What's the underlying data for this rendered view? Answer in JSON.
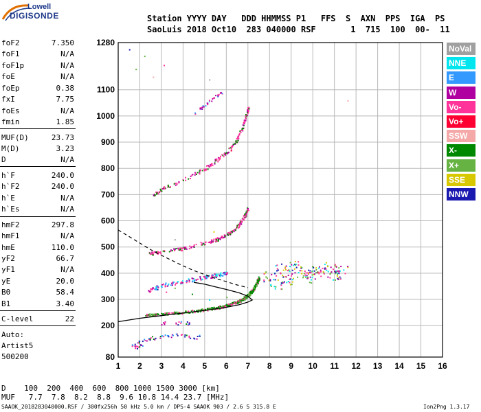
{
  "logo": {
    "line1": "Lowell",
    "line2": "DIGISONDE"
  },
  "header": {
    "line1": "Station YYYY DAY   DDD HHMMSS P1   FFS  S  AXN  PPS  IGA  PS",
    "line2": "SaoLuis 2018 Oct10  283 040000 RSF       1  715  100  00-  11"
  },
  "params": [
    {
      "k": "foF2",
      "v": "7.350"
    },
    {
      "k": "foF1",
      "v": "N/A"
    },
    {
      "k": "foF1p",
      "v": "N/A"
    },
    {
      "k": "foE",
      "v": "N/A"
    },
    {
      "k": "foEp",
      "v": "0.38"
    },
    {
      "k": "fxI",
      "v": "7.75"
    },
    {
      "k": "foEs",
      "v": "N/A"
    },
    {
      "k": "fmin",
      "v": "1.85"
    },
    {
      "k": "MUF(D)",
      "v": "23.73"
    },
    {
      "k": "M(D)",
      "v": "3.23"
    },
    {
      "k": "D",
      "v": "N/A"
    },
    {
      "k": "h`F",
      "v": "240.0"
    },
    {
      "k": "h`F2",
      "v": "240.0"
    },
    {
      "k": "h`E",
      "v": "N/A"
    },
    {
      "k": "h`Es",
      "v": "N/A"
    },
    {
      "k": "hmF2",
      "v": "297.8"
    },
    {
      "k": "hmF1",
      "v": "N/A"
    },
    {
      "k": "hmE",
      "v": "110.0"
    },
    {
      "k": "yF2",
      "v": "66.7"
    },
    {
      "k": "yF1",
      "v": "N/A"
    },
    {
      "k": "yE",
      "v": "20.0"
    },
    {
      "k": "B0",
      "v": "58.4"
    },
    {
      "k": "B1",
      "v": "3.40"
    },
    {
      "k": "C-level",
      "v": "22"
    }
  ],
  "autoscale": {
    "line1": "Auto:",
    "line2": "Artist5",
    "line3": "500200"
  },
  "legend": [
    {
      "label": "NoVal",
      "color": "#a0a0a0"
    },
    {
      "label": "NNE",
      "color": "#00e5ee"
    },
    {
      "label": "E",
      "color": "#3399ff"
    },
    {
      "label": "W",
      "color": "#b000a0"
    },
    {
      "label": "Vo-",
      "color": "#ff3399"
    },
    {
      "label": "Vo+",
      "color": "#ff0033"
    },
    {
      "label": "SSW",
      "color": "#f4a8a8"
    },
    {
      "label": "X-",
      "color": "#008800"
    },
    {
      "label": "X+",
      "color": "#66b344"
    },
    {
      "label": "SSE",
      "color": "#d8c800"
    },
    {
      "label": "NNW",
      "color": "#1a1ab0"
    }
  ],
  "muf_table": {
    "row1": "D    100  200  400  600  800 1000 1500 3000 [km]",
    "row2": "MUF   7.7  7.8  8.2  8.8  9.6 10.8 14.4 23.7 [MHz]"
  },
  "footer": {
    "left": "SAAOK_2018283040000.RSF / 300fx256h 50 kHz 5.0 km / DPS-4 SAAOK 903 / 2.6 S 315.8 E",
    "right": "Ion2Png 1.3.17"
  },
  "chart_data": {
    "type": "scatter",
    "xlim": [
      1,
      16
    ],
    "ylim": [
      80,
      1280
    ],
    "x_ticks": [
      1,
      2,
      3,
      4,
      5,
      6,
      7,
      8,
      9,
      10,
      11,
      12,
      13,
      14,
      15,
      16
    ],
    "y_ticks": [
      80,
      200,
      300,
      400,
      500,
      600,
      700,
      800,
      900,
      1000,
      1100,
      1280
    ],
    "grid": true,
    "profile_curve": [
      [
        1,
        215
      ],
      [
        2,
        228
      ],
      [
        3,
        238
      ],
      [
        4,
        248
      ],
      [
        5,
        258
      ],
      [
        6,
        270
      ],
      [
        6.6,
        280
      ],
      [
        7.0,
        290
      ],
      [
        7.2,
        298
      ],
      [
        7.0,
        312
      ],
      [
        6.6,
        325
      ],
      [
        6.0,
        338
      ],
      [
        5.5,
        348
      ],
      [
        5.0,
        358
      ],
      [
        4.5,
        365
      ]
    ],
    "dashed_curve": [
      [
        1,
        565
      ],
      [
        1.5,
        540
      ],
      [
        2,
        515
      ],
      [
        2.5,
        490
      ],
      [
        3,
        468
      ],
      [
        3.5,
        448
      ],
      [
        4,
        428
      ],
      [
        4.5,
        410
      ],
      [
        5,
        395
      ],
      [
        5.5,
        380
      ],
      [
        6,
        368
      ],
      [
        6.5,
        355
      ],
      [
        7,
        345
      ]
    ],
    "trace_x": [
      [
        2.2,
        240
      ],
      [
        3,
        246
      ],
      [
        4,
        252
      ],
      [
        5,
        262
      ],
      [
        5.6,
        270
      ],
      [
        6.1,
        280
      ],
      [
        6.5,
        292
      ],
      [
        6.8,
        305
      ],
      [
        7.0,
        318
      ],
      [
        7.2,
        335
      ],
      [
        7.35,
        355
      ],
      [
        7.5,
        385
      ]
    ],
    "trace_o": [
      [
        2.4,
        335
      ],
      [
        3,
        355
      ],
      [
        4,
        372
      ],
      [
        5,
        385
      ],
      [
        5.6,
        395
      ],
      [
        6.0,
        402
      ]
    ],
    "trace_2hop": [
      [
        2.4,
        475
      ],
      [
        3,
        482
      ],
      [
        4,
        495
      ],
      [
        5,
        515
      ],
      [
        5.6,
        532
      ],
      [
        6.1,
        552
      ],
      [
        6.5,
        580
      ],
      [
        6.8,
        615
      ],
      [
        7.0,
        650
      ]
    ],
    "trace_3hop": [
      [
        2.6,
        700
      ],
      [
        3,
        722
      ],
      [
        4,
        758
      ],
      [
        5,
        800
      ],
      [
        5.5,
        830
      ],
      [
        6.0,
        860
      ],
      [
        6.4,
        900
      ],
      [
        6.7,
        950
      ],
      [
        6.9,
        1000
      ],
      [
        7.0,
        1030
      ]
    ],
    "trace_4hop": [
      [
        4.5,
        1010
      ],
      [
        5,
        1045
      ],
      [
        5.5,
        1075
      ],
      [
        5.8,
        1095
      ]
    ],
    "low_points": [
      [
        1.7,
        130
      ],
      [
        2.0,
        140
      ],
      [
        2.3,
        150
      ],
      [
        2.6,
        155
      ],
      [
        3.0,
        160
      ],
      [
        3.4,
        162
      ],
      [
        3.8,
        165
      ],
      [
        4.2,
        160
      ],
      [
        4.6,
        158
      ],
      [
        1.8,
        118
      ],
      [
        2.1,
        128
      ],
      [
        3.1,
        210
      ],
      [
        3.8,
        212
      ],
      [
        4.2,
        210
      ]
    ],
    "spread_cluster": [
      [
        8,
        390
      ],
      [
        8.5,
        420
      ],
      [
        9,
        395
      ],
      [
        9.5,
        410
      ],
      [
        10,
        400
      ],
      [
        10.5,
        405
      ],
      [
        11,
        395
      ],
      [
        8.3,
        360
      ],
      [
        9.2,
        430
      ],
      [
        10.2,
        415
      ],
      [
        11.3,
        410
      ],
      [
        8.8,
        375
      ],
      [
        9.7,
        385
      ],
      [
        10.8,
        425
      ]
    ],
    "misc_points": [
      [
        1.5,
        1255
      ],
      [
        1.8,
        1180
      ],
      [
        2.2,
        1230
      ],
      [
        2.6,
        1150
      ],
      [
        3.1,
        1195
      ],
      [
        5.2,
        1140
      ],
      [
        11.6,
        1060
      ],
      [
        2.8,
        340
      ],
      [
        3.2,
        330
      ],
      [
        3.6,
        345
      ],
      [
        4.4,
        322
      ],
      [
        5.2,
        300
      ],
      [
        6.0,
        310
      ],
      [
        6.2,
        870
      ],
      [
        5.4,
        560
      ],
      [
        3.6,
        530
      ],
      [
        4.8,
        520
      ]
    ]
  }
}
